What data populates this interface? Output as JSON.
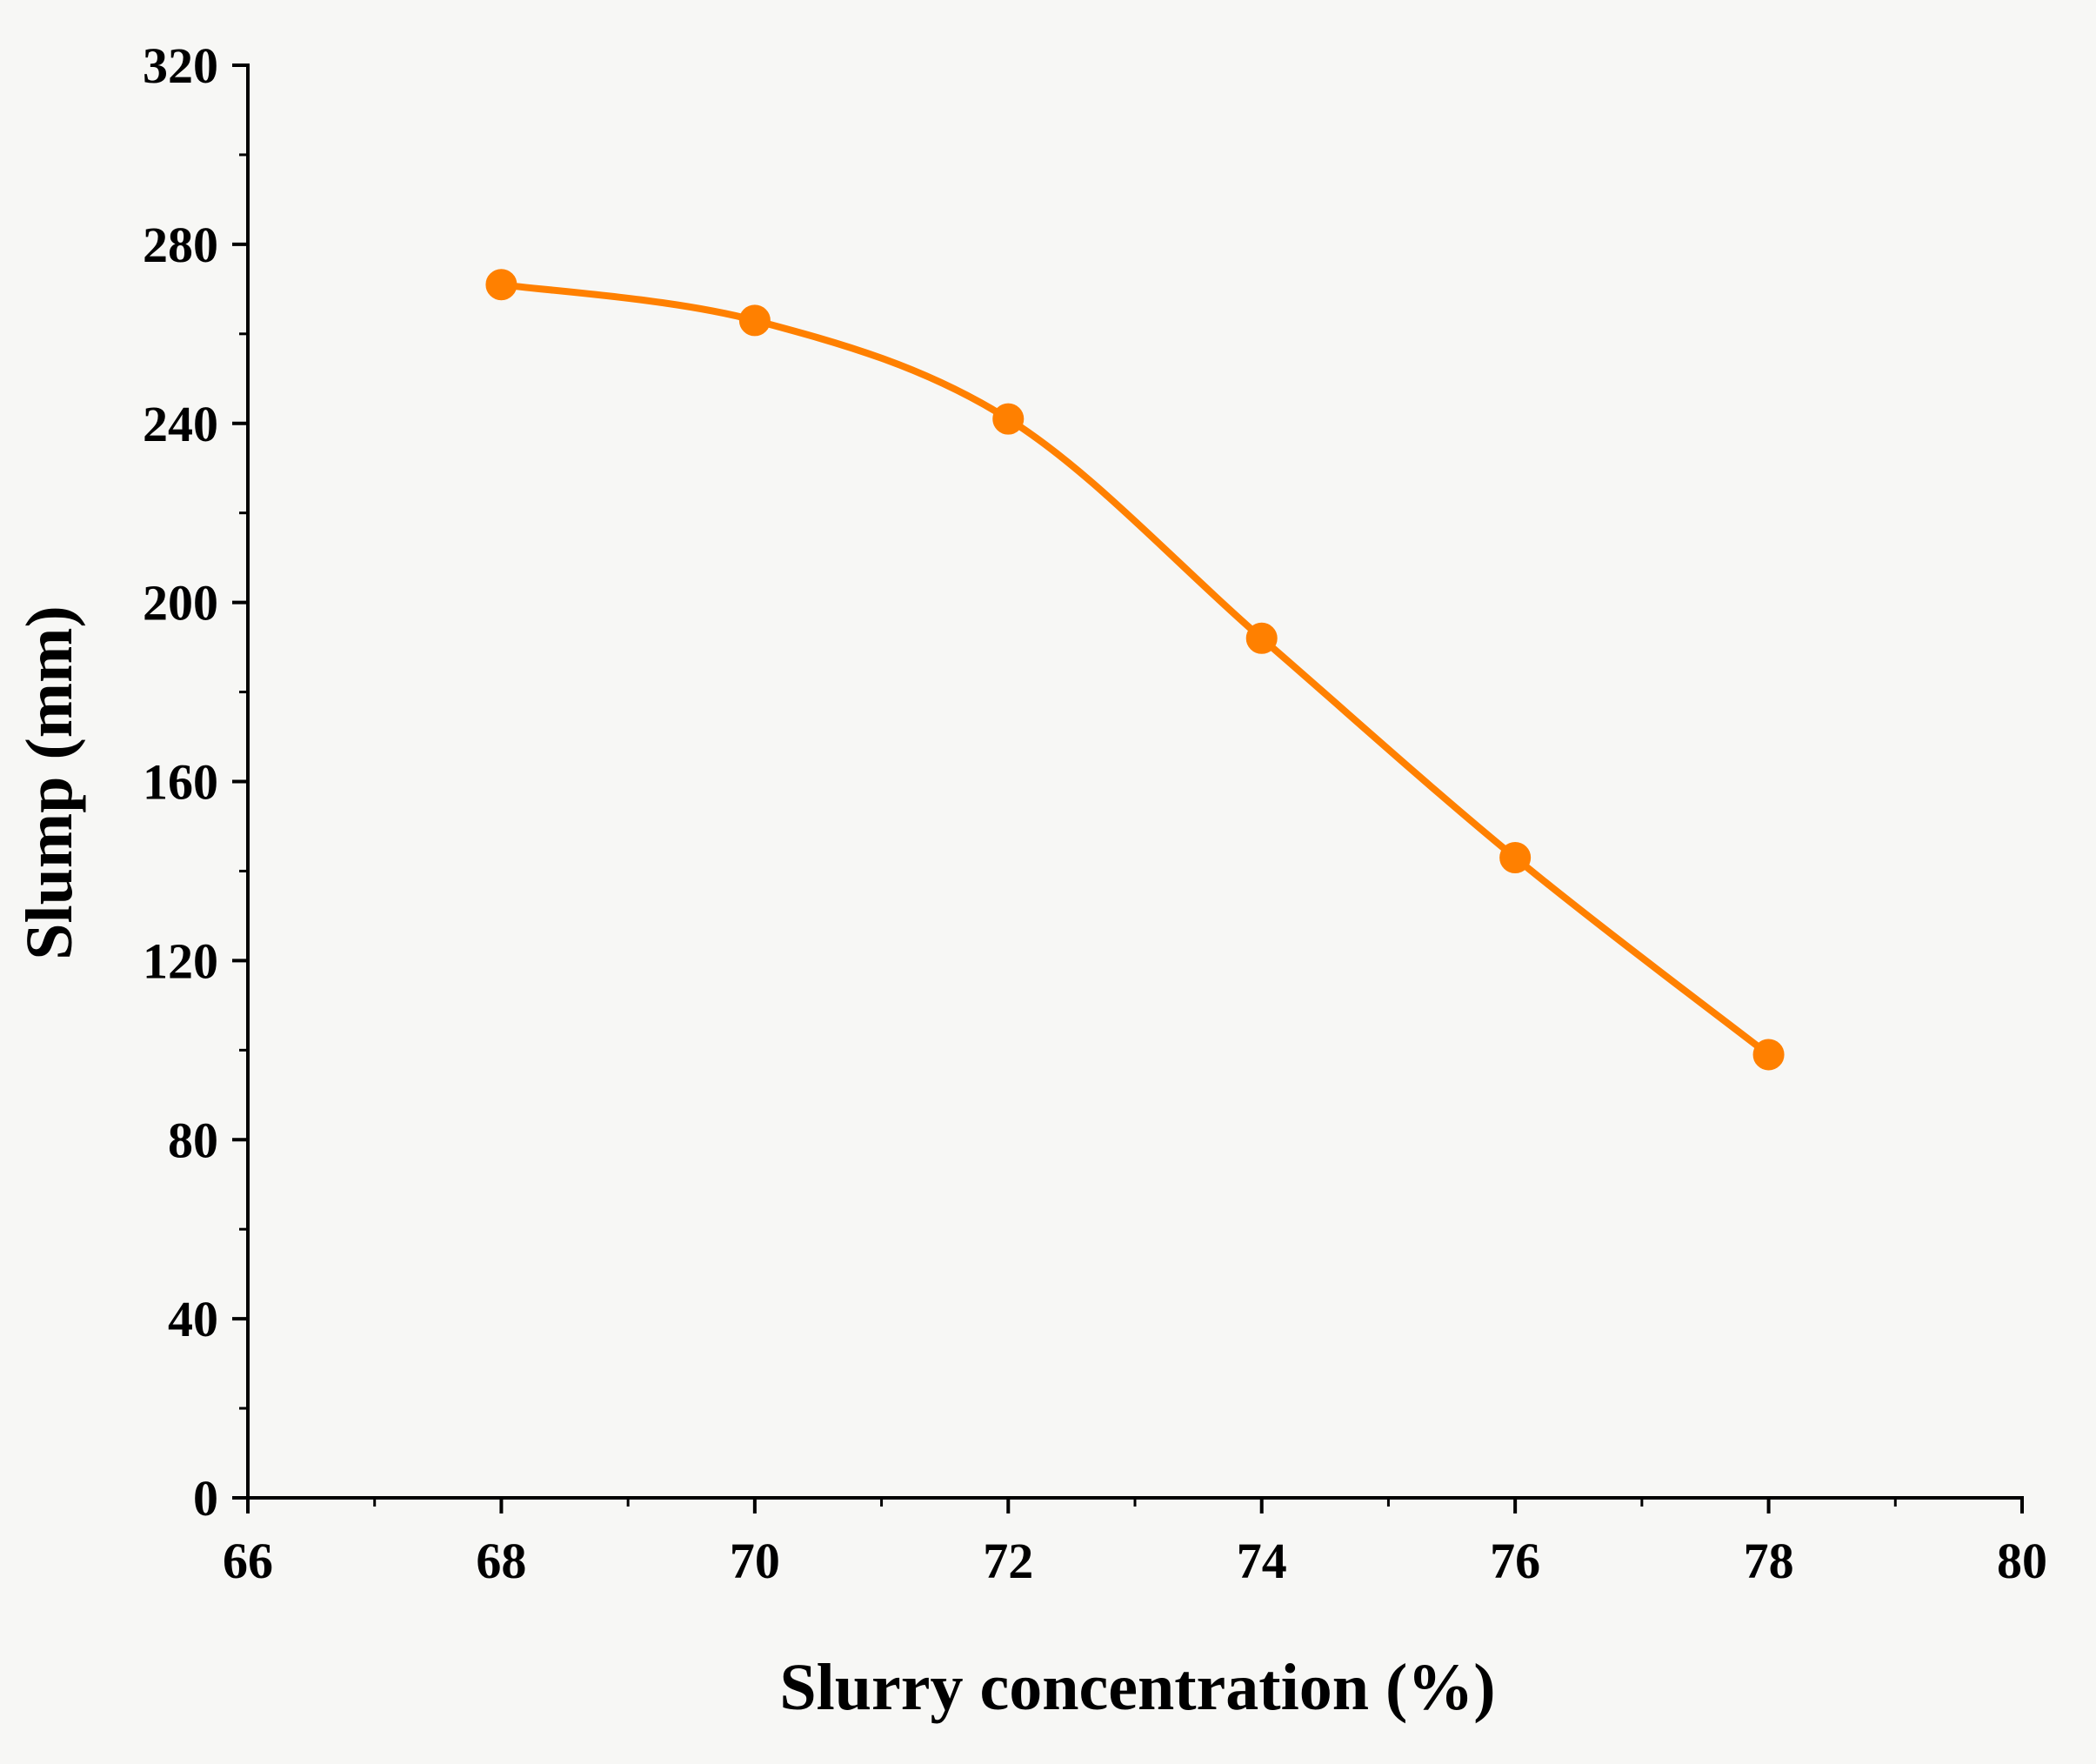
{
  "chart_data": {
    "type": "line",
    "title": "",
    "xlabel": "Slurry concentration (%)",
    "ylabel": "Slump (mm)",
    "xlim": [
      66,
      80
    ],
    "ylim": [
      0,
      320
    ],
    "x_ticks": [
      66,
      68,
      70,
      72,
      74,
      76,
      78,
      80
    ],
    "y_ticks": [
      0,
      40,
      80,
      120,
      160,
      200,
      240,
      280,
      320
    ],
    "x_tick_labels": [
      "66",
      "68",
      "70",
      "72",
      "74",
      "76",
      "78",
      "80"
    ],
    "y_tick_labels": [
      "0",
      "40",
      "80",
      "120",
      "160",
      "200",
      "240",
      "280",
      "320"
    ],
    "grid": false,
    "legend": "none",
    "series": [
      {
        "name": "Slump",
        "color": "#ff8000",
        "marker": "circle",
        "smooth": true,
        "x": [
          68,
          70,
          72,
          74,
          76,
          78
        ],
        "y": [
          271,
          263,
          241,
          192,
          143,
          99
        ]
      }
    ]
  }
}
